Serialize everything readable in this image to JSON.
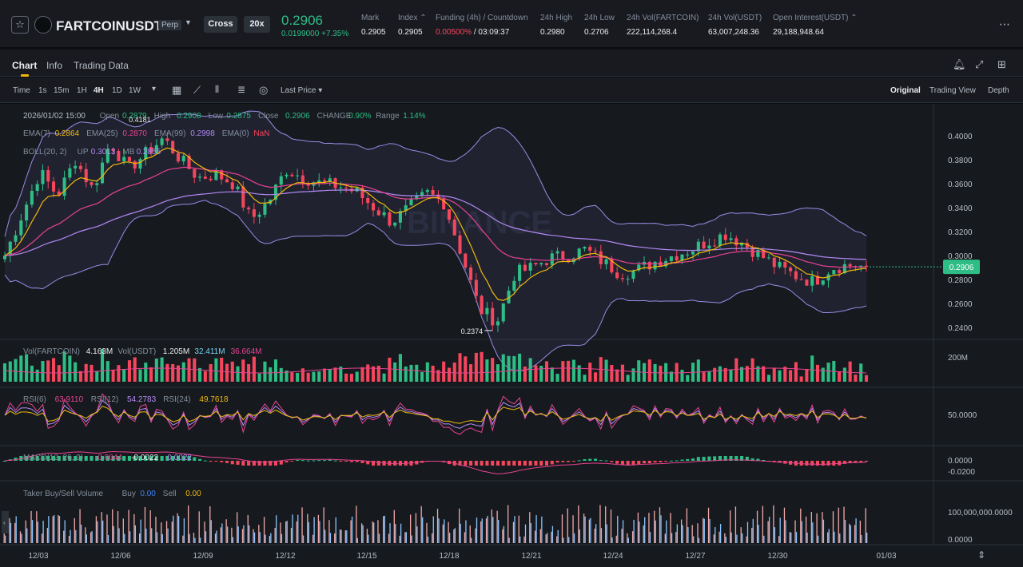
{
  "header": {
    "symbol": "FARTCOINUSDT",
    "contract_badge": "Perp",
    "margin_mode": "Cross",
    "leverage": "20x",
    "last_price": "0.2906",
    "change": "0.0199000 +7.35%",
    "stats": [
      {
        "label": "Mark",
        "value": "0.2905"
      },
      {
        "label": "Index ⌃",
        "value": "0.2905"
      },
      {
        "label": "Funding (4h) / Countdown",
        "value": "0.00500%",
        "value2": " / 03:09:37"
      },
      {
        "label": "24h High",
        "value": "0.2980"
      },
      {
        "label": "24h Low",
        "value": "0.2706"
      },
      {
        "label": "24h Vol(FARTCOIN)",
        "value": "222,114,268.4"
      },
      {
        "label": "24h Vol(USDT)",
        "value": "63,007,248.36"
      },
      {
        "label": "Open Interest(USDT) ⌃",
        "value": "29,188,948.64"
      }
    ]
  },
  "tabs": [
    "Chart",
    "Info",
    "Trading Data"
  ],
  "toolbar": {
    "intervals": [
      "Time",
      "1s",
      "15m",
      "1H",
      "4H",
      "1D",
      "1W"
    ],
    "active_interval": "4H",
    "price_type": "Last Price",
    "views": [
      "Original",
      "Trading View",
      "Depth"
    ],
    "active_view": "Original"
  },
  "legend": {
    "ohlc": [
      {
        "t": "2026/01/02 15:00",
        "c": "#b7bdc6"
      },
      {
        "t": "Open",
        "c": "#848e9c"
      },
      {
        "t": "0.2879",
        "c": "#2ebd85"
      },
      {
        "t": "High",
        "c": "#848e9c"
      },
      {
        "t": "0.2908",
        "c": "#2ebd85"
      },
      {
        "t": "Low",
        "c": "#848e9c"
      },
      {
        "t": "0.2875",
        "c": "#2ebd85"
      },
      {
        "t": "Close",
        "c": "#848e9c"
      },
      {
        "t": "0.2906",
        "c": "#2ebd85"
      },
      {
        "t": "CHANGE",
        "c": "#848e9c"
      },
      {
        "t": "0.90%",
        "c": "#2ebd85"
      },
      {
        "t": "Range",
        "c": "#848e9c"
      },
      {
        "t": "1.14%",
        "c": "#2ebd85"
      }
    ],
    "ema": [
      {
        "t": "EMA(7)",
        "c": "#848e9c"
      },
      {
        "t": "0.2864",
        "c": "#f0b90b"
      },
      {
        "t": "EMA(25)",
        "c": "#848e9c"
      },
      {
        "t": "0.2870",
        "c": "#e84393"
      },
      {
        "t": "EMA(99)",
        "c": "#848e9c"
      },
      {
        "t": "0.2998",
        "c": "#b38af5"
      },
      {
        "t": "EMA(0)",
        "c": "#848e9c"
      },
      {
        "t": "NaN",
        "c": "#f6465d"
      }
    ],
    "boll": [
      {
        "t": "BOLL(20, 2)",
        "c": "#848e9c"
      },
      {
        "t": "UP",
        "c": "#848e9c"
      },
      {
        "t": "0.3013",
        "c": "#b38af5"
      },
      {
        "t": "MB",
        "c": "#848e9c"
      },
      {
        "t": "0.2855",
        "c": "#b38af5"
      }
    ],
    "vol": [
      {
        "t": "Vol(FARTCOIN)",
        "c": "#848e9c"
      },
      {
        "t": "4.163M",
        "c": "#eaecef"
      },
      {
        "t": "Vol(USDT)",
        "c": "#848e9c"
      },
      {
        "t": "1.205M",
        "c": "#eaecef"
      },
      {
        "t": "32.411M",
        "c": "#76d2f0"
      },
      {
        "t": "36.664M",
        "c": "#e84393"
      }
    ],
    "rsi": [
      {
        "t": "RSI(6)",
        "c": "#848e9c"
      },
      {
        "t": "63.9110",
        "c": "#e84393"
      },
      {
        "t": "RSI(12)",
        "c": "#848e9c"
      },
      {
        "t": "54.2783",
        "c": "#b38af5"
      },
      {
        "t": "RSI(24)",
        "c": "#848e9c"
      },
      {
        "t": "49.7618",
        "c": "#f0b90b"
      }
    ],
    "macd": [
      {
        "t": "MACD(12, 26, 9)",
        "c": "#848e9c"
      },
      {
        "t": "-0.0044",
        "c": "#e84393"
      },
      {
        "t": "-0.0022",
        "c": "#eaecef"
      },
      {
        "t": "0.0022",
        "c": "#b38af5"
      }
    ],
    "taker": [
      {
        "t": "Taker Buy/Sell Volume",
        "c": "#848e9c"
      },
      {
        "t": "Buy",
        "c": "#848e9c"
      },
      {
        "t": "0.00",
        "c": "#3b82f6"
      },
      {
        "t": "Sell",
        "c": "#848e9c"
      },
      {
        "t": "0.00",
        "c": "#f0b90b"
      }
    ]
  },
  "axes": {
    "price_ticks": [
      "0.4000",
      "0.3800",
      "0.3600",
      "0.3400",
      "0.3200",
      "0.3000",
      "0.2800",
      "0.2600",
      "0.2400"
    ],
    "vol_ticks": [
      "200M"
    ],
    "rsi_ticks": [
      "50.0000"
    ],
    "macd_ticks": [
      "0.0000",
      "-0.0200"
    ],
    "taker_ticks": [
      "100,000,000.0000",
      "0.0000"
    ],
    "date_labels": [
      "12/03",
      "12/06",
      "12/09",
      "12/12",
      "12/15",
      "12/18",
      "12/21",
      "12/24",
      "12/27",
      "12/30",
      "01/03"
    ]
  },
  "annotations": {
    "last_price_tag": "0.2906",
    "high_marker": "0.4181",
    "low_marker": "0.2374",
    "watermark": "BINANCE"
  },
  "colors": {
    "up": "#2ebd85",
    "down": "#f6465d",
    "accent": "#f0b90b",
    "ema7": "#f0b90b",
    "ema25": "#e84393",
    "ema99": "#b38af5",
    "boll": "#9b8ae6"
  },
  "chart_data": {
    "type": "candlestick",
    "x_range": [
      "12/03",
      "01/03"
    ],
    "ylim": [
      0.23,
      0.42
    ],
    "close_path": [
      0.3,
      0.335,
      0.37,
      0.35,
      0.38,
      0.355,
      0.395,
      0.372,
      0.385,
      0.398,
      0.38,
      0.365,
      0.368,
      0.36,
      0.33,
      0.345,
      0.372,
      0.365,
      0.36,
      0.358,
      0.353,
      0.34,
      0.328,
      0.34,
      0.352,
      0.344,
      0.3,
      0.255,
      0.245,
      0.285,
      0.29,
      0.298,
      0.3,
      0.305,
      0.295,
      0.285,
      0.288,
      0.295,
      0.3,
      0.305,
      0.312,
      0.318,
      0.31,
      0.3,
      0.29,
      0.283,
      0.278,
      0.29,
      0.292,
      0.2906
    ]
  }
}
